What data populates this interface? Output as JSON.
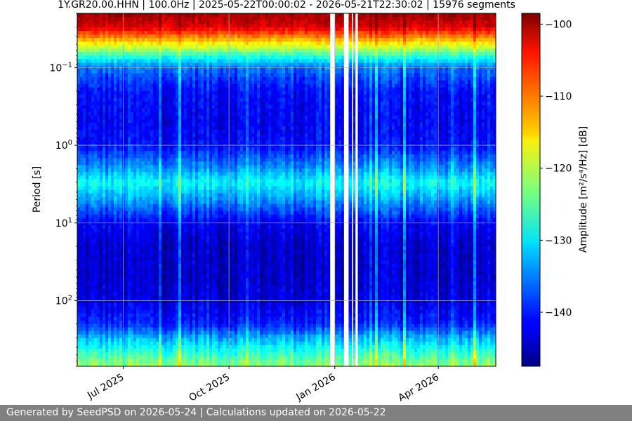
{
  "chart_data": {
    "type": "heatmap",
    "title": "1Y.GR20.00.HHN | 100.0Hz | 2025-05-22T00:00:02 - 2026-05-21T22:30:02 | 15976 segments",
    "xlabel": "",
    "ylabel": "Period [s]",
    "colorbar_label": "Amplitude [m²/s⁴/Hz] [dB]",
    "colormap": "jet",
    "x_range": [
      "2025-05-22",
      "2026-05-21"
    ],
    "x_ticks": [
      {
        "label": "Jul 2025",
        "date": "2025-07-01"
      },
      {
        "label": "Oct 2025",
        "date": "2025-10-01"
      },
      {
        "label": "Jan 2026",
        "date": "2026-01-01"
      },
      {
        "label": "Apr 2026",
        "date": "2026-04-01"
      }
    ],
    "y_scale": "log",
    "y_inverted": true,
    "y_range": [
      0.02,
      700
    ],
    "y_ticks": [
      {
        "base": "10",
        "exp": "−1",
        "value": 0.1
      },
      {
        "base": "10",
        "exp": "0",
        "value": 1
      },
      {
        "base": "10",
        "exp": "1",
        "value": 10
      },
      {
        "base": "10",
        "exp": "2",
        "value": 100
      }
    ],
    "color_range": [
      -147.5,
      -98.5
    ],
    "colorbar_ticks": [
      "−100",
      "−110",
      "−120",
      "−130",
      "−140"
    ],
    "colorbar_tick_values": [
      -100,
      -110,
      -120,
      -130,
      -140
    ],
    "grid": true,
    "data_gaps": [
      {
        "start": "2025-12-28",
        "end": "2026-01-01"
      },
      {
        "start": "2026-01-09",
        "end": "2026-01-13"
      },
      {
        "start": "2026-01-16",
        "end": "2026-01-17"
      },
      {
        "start": "2026-01-19",
        "end": "2026-01-21"
      }
    ],
    "amplitude_profile": {
      "period_s": [
        0.02,
        0.03,
        0.05,
        0.07,
        0.1,
        0.2,
        0.5,
        1,
        2,
        3,
        5,
        10,
        20,
        50,
        100,
        200,
        300,
        500,
        700
      ],
      "typical_db": [
        -100,
        -103,
        -117,
        -127,
        -136,
        -141,
        -142,
        -141,
        -134,
        -129,
        -134,
        -142,
        -144,
        -144,
        -143,
        -140,
        -133,
        -126,
        -122
      ]
    }
  },
  "footer": {
    "text": "Generated by SeedPSD on 2026-05-24 | Calculations updated on 2026-05-22"
  }
}
